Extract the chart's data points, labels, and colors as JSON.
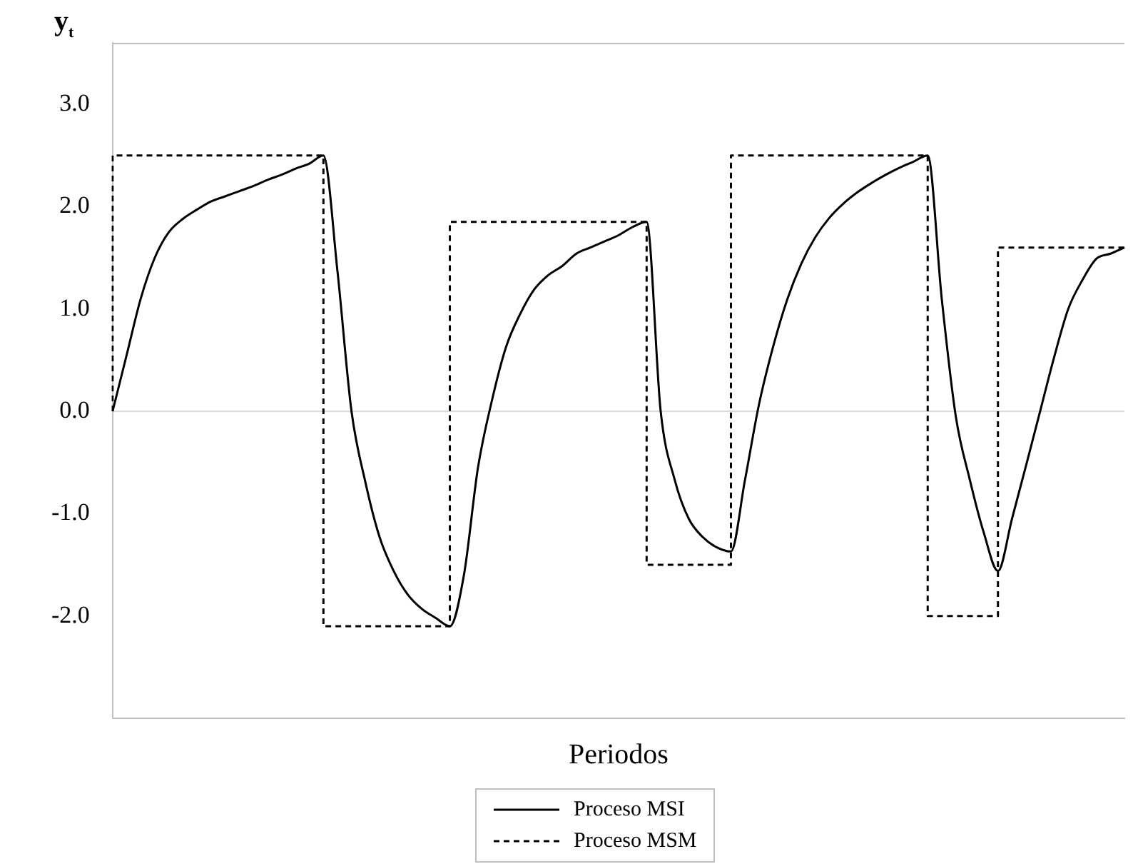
{
  "chart_data": {
    "type": "line",
    "xlabel": "Periodos",
    "ylabel": "y$_{t}$",
    "categories": [
      null,
      null,
      null,
      null,
      null,
      null,
      null,
      null,
      null,
      null,
      null,
      null,
      null,
      null,
      null,
      null,
      null,
      null,
      null,
      null,
      null,
      null,
      null,
      null,
      null,
      null,
      null,
      null,
      null,
      null,
      null,
      null,
      null,
      null,
      null,
      null,
      null,
      null,
      null,
      null,
      null,
      null,
      null,
      null,
      null,
      null,
      null,
      null,
      null,
      null,
      null,
      null,
      null,
      null,
      null,
      null,
      null,
      null,
      null,
      null,
      null,
      null,
      null,
      null,
      null,
      null,
      null,
      null,
      null,
      null,
      null,
      null,
      null
    ],
    "series": [
      {
        "name": "Proceso MSI",
        "type": "line",
        "line_style": "solid",
        "color": "#000000",
        "values": [
          0,
          0.55,
          1.1,
          1.5,
          1.75,
          1.88,
          1.97,
          2.05,
          2.1,
          2.15,
          2.2,
          2.26,
          2.31,
          2.37,
          2.42,
          2.5,
          1.37,
          0.0,
          -0.7,
          -1.23,
          -1.56,
          -1.79,
          -1.93,
          -2.02,
          -2.1,
          -1.6,
          -0.55,
          0.11,
          0.63,
          0.95,
          1.19,
          1.33,
          1.42,
          1.54,
          1.6,
          1.66,
          1.72,
          1.8,
          1.85,
          0.0,
          -0.67,
          -1.05,
          -1.23,
          -1.33,
          -1.37,
          -0.67,
          0.07,
          0.63,
          1.09,
          1.44,
          1.7,
          1.89,
          2.03,
          2.14,
          2.23,
          2.31,
          2.38,
          2.44,
          2.5,
          1.1,
          -0.05,
          -0.67,
          -1.19,
          -1.56,
          -1.05,
          -0.53,
          0.0,
          0.53,
          1.0,
          1.28,
          1.49,
          1.54,
          1.6
        ]
      },
      {
        "name": "Proceso MSM",
        "type": "step",
        "line_style": "dashed",
        "color": "#000000",
        "values": [
          0,
          2.5,
          2.5,
          2.5,
          2.5,
          2.5,
          2.5,
          2.5,
          2.5,
          2.5,
          2.5,
          2.5,
          2.5,
          2.5,
          2.5,
          2.5,
          -2.1,
          -2.1,
          -2.1,
          -2.1,
          -2.1,
          -2.1,
          -2.1,
          -2.1,
          -2.1,
          1.85,
          1.85,
          1.85,
          1.85,
          1.85,
          1.85,
          1.85,
          1.85,
          1.85,
          1.85,
          1.85,
          1.85,
          1.85,
          1.85,
          -1.5,
          -1.5,
          -1.5,
          -1.5,
          -1.5,
          -1.5,
          2.5,
          2.5,
          2.5,
          2.5,
          2.5,
          2.5,
          2.5,
          2.5,
          2.5,
          2.5,
          2.5,
          2.5,
          2.5,
          2.5,
          -2.0,
          -2.0,
          -2.0,
          -2.0,
          -2.0,
          1.6,
          1.6,
          1.6,
          1.6,
          1.6,
          1.6,
          1.6,
          1.6,
          1.6
        ]
      }
    ],
    "ylim": [
      -3,
      3.6
    ],
    "yticks": [
      {
        "value": -2,
        "label": "-2.0"
      },
      {
        "value": -1,
        "label": "-1.0"
      },
      {
        "value": 0,
        "label": "0.0"
      },
      {
        "value": 1,
        "label": "1.0"
      },
      {
        "value": 2,
        "label": "2.0"
      },
      {
        "value": 3,
        "label": "3.0"
      }
    ],
    "tick_labels": "y",
    "ref_lines": [
      {
        "axis": "y",
        "value": 0,
        "label": null,
        "color": "#d9d9d9"
      }
    ],
    "legend": "bottom"
  }
}
